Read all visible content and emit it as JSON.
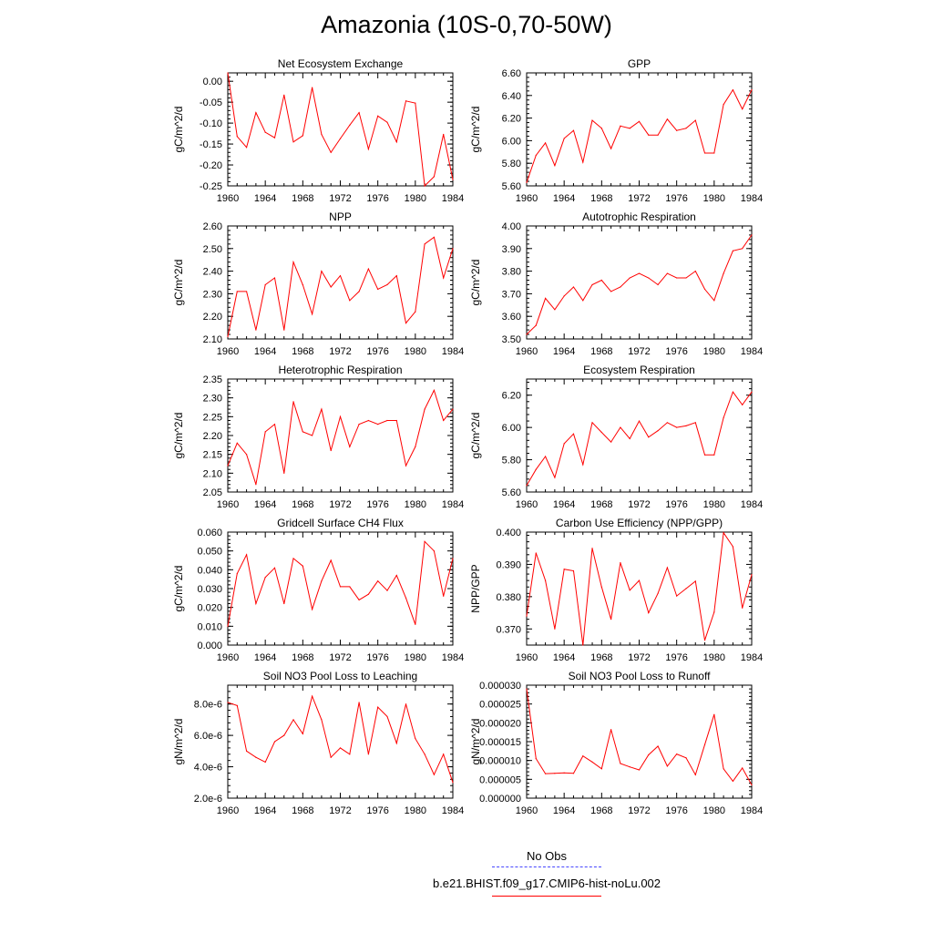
{
  "title": "Amazonia (10S-0,70-50W)",
  "legend": {
    "obs_label": "No Obs",
    "case_label": "b.e21.BHIST.f09_g17.CMIP6-hist-noLu.002",
    "obs_color": "#4646ff",
    "case_color": "#ff0000"
  },
  "chart_data": [
    {
      "type": "line",
      "title": "Net Ecosystem Exchange",
      "ylabel": "gC/m^2/d",
      "xlim": [
        1960,
        1984
      ],
      "ylim": [
        -0.25,
        0.02
      ],
      "xticks": [
        "1960",
        "1964",
        "1968",
        "1972",
        "1976",
        "1980",
        "1984"
      ],
      "yticks": [
        "0.00",
        "-0.05",
        "-0.10",
        "-0.15",
        "-0.20",
        "-0.25"
      ],
      "x": [
        1960,
        1961,
        1962,
        1963,
        1964,
        1965,
        1966,
        1967,
        1968,
        1969,
        1970,
        1971,
        1972,
        1973,
        1974,
        1975,
        1976,
        1977,
        1978,
        1979,
        1980,
        1981,
        1982,
        1983,
        1984
      ],
      "values": [
        0.02,
        -0.132,
        -0.158,
        -0.075,
        -0.122,
        -0.135,
        -0.033,
        -0.145,
        -0.13,
        -0.015,
        -0.127,
        -0.17,
        -0.137,
        -0.105,
        -0.075,
        -0.162,
        -0.083,
        -0.098,
        -0.145,
        -0.047,
        -0.052,
        -0.25,
        -0.228,
        -0.127,
        -0.235
      ]
    },
    {
      "type": "line",
      "title": "GPP",
      "ylabel": "gC/m^2/d",
      "xlim": [
        1960,
        1984
      ],
      "ylim": [
        5.6,
        6.6
      ],
      "xticks": [
        "1960",
        "1964",
        "1968",
        "1972",
        "1976",
        "1980",
        "1984"
      ],
      "yticks": [
        "6.60",
        "6.40",
        "6.20",
        "6.00",
        "5.80",
        "5.60"
      ],
      "x": [
        1960,
        1961,
        1962,
        1963,
        1964,
        1965,
        1966,
        1967,
        1968,
        1969,
        1970,
        1971,
        1972,
        1973,
        1974,
        1975,
        1976,
        1977,
        1978,
        1979,
        1980,
        1981,
        1982,
        1983,
        1984
      ],
      "values": [
        5.63,
        5.87,
        5.98,
        5.78,
        6.02,
        6.09,
        5.81,
        6.18,
        6.11,
        5.93,
        6.13,
        6.11,
        6.17,
        6.05,
        6.05,
        6.19,
        6.09,
        6.11,
        6.18,
        5.89,
        5.89,
        6.32,
        6.45,
        6.28,
        6.45
      ]
    },
    {
      "type": "line",
      "title": "NPP",
      "ylabel": "gC/m^2/d",
      "xlim": [
        1960,
        1984
      ],
      "ylim": [
        2.1,
        2.6
      ],
      "xticks": [
        "1960",
        "1964",
        "1968",
        "1972",
        "1976",
        "1980",
        "1984"
      ],
      "yticks": [
        "2.60",
        "2.50",
        "2.40",
        "2.30",
        "2.20",
        "2.10"
      ],
      "x": [
        1960,
        1961,
        1962,
        1963,
        1964,
        1965,
        1966,
        1967,
        1968,
        1969,
        1970,
        1971,
        1972,
        1973,
        1974,
        1975,
        1976,
        1977,
        1978,
        1979,
        1980,
        1981,
        1982,
        1983,
        1984
      ],
      "values": [
        2.11,
        2.31,
        2.31,
        2.14,
        2.34,
        2.37,
        2.14,
        2.44,
        2.34,
        2.21,
        2.4,
        2.33,
        2.38,
        2.27,
        2.31,
        2.41,
        2.32,
        2.34,
        2.38,
        2.17,
        2.22,
        2.52,
        2.55,
        2.37,
        2.5
      ]
    },
    {
      "type": "line",
      "title": "Autotrophic Respiration",
      "ylabel": "gC/m^2/d",
      "xlim": [
        1960,
        1984
      ],
      "ylim": [
        3.5,
        4.0
      ],
      "xticks": [
        "1960",
        "1964",
        "1968",
        "1972",
        "1976",
        "1980",
        "1984"
      ],
      "yticks": [
        "4.00",
        "3.90",
        "3.80",
        "3.70",
        "3.60",
        "3.50"
      ],
      "x": [
        1960,
        1961,
        1962,
        1963,
        1964,
        1965,
        1966,
        1967,
        1968,
        1969,
        1970,
        1971,
        1972,
        1973,
        1974,
        1975,
        1976,
        1977,
        1978,
        1979,
        1980,
        1981,
        1982,
        1983,
        1984
      ],
      "values": [
        3.52,
        3.56,
        3.68,
        3.63,
        3.69,
        3.73,
        3.67,
        3.74,
        3.76,
        3.71,
        3.73,
        3.77,
        3.79,
        3.77,
        3.74,
        3.79,
        3.77,
        3.77,
        3.8,
        3.72,
        3.67,
        3.79,
        3.89,
        3.9,
        3.96
      ]
    },
    {
      "type": "line",
      "title": "Heterotrophic Respiration",
      "ylabel": "gC/m^2/d",
      "xlim": [
        1960,
        1984
      ],
      "ylim": [
        2.05,
        2.35
      ],
      "xticks": [
        "1960",
        "1964",
        "1968",
        "1972",
        "1976",
        "1980",
        "1984"
      ],
      "yticks": [
        "2.35",
        "2.30",
        "2.25",
        "2.20",
        "2.15",
        "2.10",
        "2.05"
      ],
      "x": [
        1960,
        1961,
        1962,
        1963,
        1964,
        1965,
        1966,
        1967,
        1968,
        1969,
        1970,
        1971,
        1972,
        1973,
        1974,
        1975,
        1976,
        1977,
        1978,
        1979,
        1980,
        1981,
        1982,
        1983,
        1984
      ],
      "values": [
        2.12,
        2.18,
        2.15,
        2.07,
        2.21,
        2.23,
        2.1,
        2.29,
        2.21,
        2.2,
        2.27,
        2.16,
        2.25,
        2.17,
        2.23,
        2.24,
        2.23,
        2.24,
        2.24,
        2.12,
        2.17,
        2.27,
        2.32,
        2.24,
        2.27
      ]
    },
    {
      "type": "line",
      "title": "Ecosystem Respiration",
      "ylabel": "gC/m^2/d",
      "xlim": [
        1960,
        1984
      ],
      "ylim": [
        5.6,
        6.3
      ],
      "xticks": [
        "1960",
        "1964",
        "1968",
        "1972",
        "1976",
        "1980",
        "1984"
      ],
      "yticks": [
        "6.20",
        "6.00",
        "5.80",
        "5.60"
      ],
      "x": [
        1960,
        1961,
        1962,
        1963,
        1964,
        1965,
        1966,
        1967,
        1968,
        1969,
        1970,
        1971,
        1972,
        1973,
        1974,
        1975,
        1976,
        1977,
        1978,
        1979,
        1980,
        1981,
        1982,
        1983,
        1984
      ],
      "values": [
        5.64,
        5.74,
        5.82,
        5.69,
        5.9,
        5.96,
        5.77,
        6.03,
        5.97,
        5.91,
        6.0,
        5.93,
        6.04,
        5.94,
        5.98,
        6.03,
        6.0,
        6.01,
        6.03,
        5.83,
        5.83,
        6.06,
        6.22,
        6.14,
        6.22
      ]
    },
    {
      "type": "line",
      "title": "Gridcell Surface CH4 Flux",
      "ylabel": "gC/m^2/d",
      "xlim": [
        1960,
        1984
      ],
      "ylim": [
        0.0,
        0.06
      ],
      "xticks": [
        "1960",
        "1964",
        "1968",
        "1972",
        "1976",
        "1980",
        "1984"
      ],
      "yticks": [
        "0.060",
        "0.050",
        "0.040",
        "0.030",
        "0.020",
        "0.010",
        "0.000"
      ],
      "x": [
        1960,
        1961,
        1962,
        1963,
        1964,
        1965,
        1966,
        1967,
        1968,
        1969,
        1970,
        1971,
        1972,
        1973,
        1974,
        1975,
        1976,
        1977,
        1978,
        1979,
        1980,
        1981,
        1982,
        1983,
        1984
      ],
      "values": [
        0.01,
        0.038,
        0.048,
        0.022,
        0.036,
        0.041,
        0.022,
        0.046,
        0.042,
        0.019,
        0.034,
        0.045,
        0.031,
        0.031,
        0.024,
        0.027,
        0.034,
        0.029,
        0.037,
        0.025,
        0.011,
        0.055,
        0.05,
        0.026,
        0.046
      ]
    },
    {
      "type": "line",
      "title": "Carbon Use Efficiency (NPP/GPP)",
      "ylabel": "NPP/GPP",
      "xlim": [
        1960,
        1984
      ],
      "ylim": [
        0.365,
        0.4
      ],
      "xticks": [
        "1960",
        "1964",
        "1968",
        "1972",
        "1976",
        "1980",
        "1984"
      ],
      "yticks": [
        "0.400",
        "0.390",
        "0.380",
        "0.370"
      ],
      "x": [
        1960,
        1961,
        1962,
        1963,
        1964,
        1965,
        1966,
        1967,
        1968,
        1969,
        1970,
        1971,
        1972,
        1973,
        1974,
        1975,
        1976,
        1977,
        1978,
        1979,
        1980,
        1981,
        1982,
        1983,
        1984
      ],
      "values": [
        0.374,
        0.3935,
        0.385,
        0.37,
        0.3885,
        0.388,
        0.365,
        0.395,
        0.383,
        0.373,
        0.3905,
        0.382,
        0.385,
        0.375,
        0.381,
        0.389,
        0.3802,
        0.3825,
        0.3848,
        0.3665,
        0.3752,
        0.3998,
        0.3955,
        0.3765,
        0.3868
      ]
    },
    {
      "type": "line",
      "title": "Soil NO3 Pool Loss to Leaching",
      "ylabel": "gN/m^2/d",
      "xlim": [
        1960,
        1984
      ],
      "ylim": [
        2e-06,
        9.2e-06
      ],
      "xticks": [
        "1960",
        "1964",
        "1968",
        "1972",
        "1976",
        "1980",
        "1984"
      ],
      "yticks": [
        "8.0e-6",
        "6.0e-6",
        "4.0e-6",
        "2.0e-6"
      ],
      "x": [
        1960,
        1961,
        1962,
        1963,
        1964,
        1965,
        1966,
        1967,
        1968,
        1969,
        1970,
        1971,
        1972,
        1973,
        1974,
        1975,
        1976,
        1977,
        1978,
        1979,
        1980,
        1981,
        1982,
        1983,
        1984
      ],
      "values": [
        8.1e-06,
        7.9e-06,
        5e-06,
        4.6e-06,
        4.3e-06,
        5.6e-06,
        6e-06,
        7e-06,
        6.1e-06,
        8.5e-06,
        7e-06,
        4.6e-06,
        5.2e-06,
        4.8e-06,
        8.1e-06,
        4.8e-06,
        7.8e-06,
        7.2e-06,
        5.5e-06,
        8e-06,
        5.8e-06,
        4.8e-06,
        3.5e-06,
        4.8e-06,
        3e-06
      ]
    },
    {
      "type": "line",
      "title": "Soil NO3 Pool Loss to Runoff",
      "ylabel": "gN/m^2/d",
      "xlim": [
        1960,
        1984
      ],
      "ylim": [
        0.0,
        3e-05
      ],
      "xticks": [
        "1960",
        "1964",
        "1968",
        "1972",
        "1976",
        "1980",
        "1984"
      ],
      "yticks": [
        "0.000030",
        "0.000025",
        "0.000020",
        "0.000015",
        "0.000010",
        "0.000005",
        "0.000000"
      ],
      "x": [
        1960,
        1961,
        1962,
        1963,
        1964,
        1965,
        1966,
        1967,
        1968,
        1969,
        1970,
        1971,
        1972,
        1973,
        1974,
        1975,
        1976,
        1977,
        1978,
        1979,
        1980,
        1981,
        1982,
        1983,
        1984
      ],
      "values": [
        2.9e-05,
        1.05e-05,
        6.5e-06,
        6.6e-06,
        6.7e-06,
        6.6e-06,
        1.12e-05,
        9.6e-06,
        7.8e-06,
        1.82e-05,
        9.2e-06,
        8.3e-06,
        7.5e-06,
        1.15e-05,
        1.38e-05,
        8.5e-06,
        1.17e-05,
        1.07e-05,
        6.2e-06,
        1.42e-05,
        2.22e-05,
        7.8e-06,
        4.5e-06,
        8e-06,
        3.5e-06
      ]
    }
  ]
}
